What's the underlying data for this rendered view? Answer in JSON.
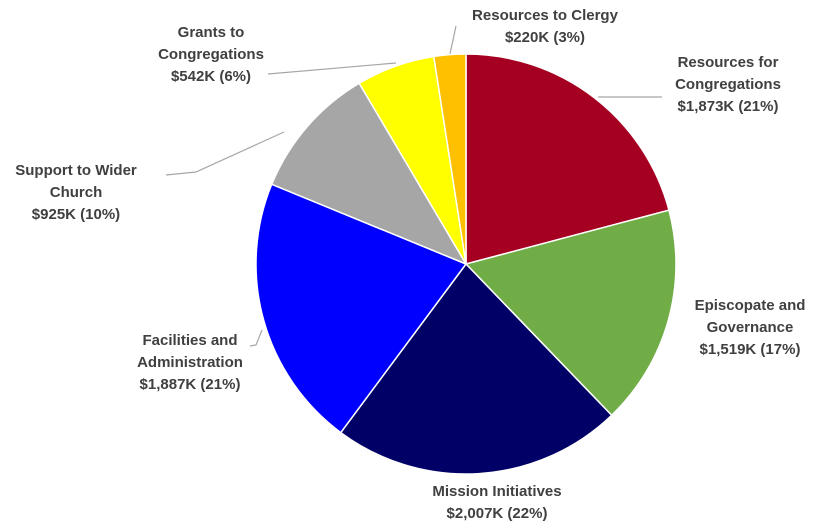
{
  "chart_data": {
    "type": "pie",
    "categories": [
      "Resources for Congregations",
      "Episcopate and Governance",
      "Mission Initiatives",
      "Facilities and Administration",
      "Support to Wider Church",
      "Grants to Congregations",
      "Resources to Clergy"
    ],
    "values": [
      1873,
      1519,
      2007,
      1887,
      925,
      542,
      220
    ],
    "value_labels": [
      "$1,873K (21%)",
      "$1,519K (17%)",
      "$2,007K (22%)",
      "$1,887K (21%)",
      "$925K (10%)",
      "$542K (6%)",
      "$220K (3%)"
    ],
    "colors": [
      "#a50021",
      "#70ad47",
      "#000066",
      "#0000ff",
      "#a6a6a6",
      "#ffff00",
      "#ffc000"
    ]
  }
}
